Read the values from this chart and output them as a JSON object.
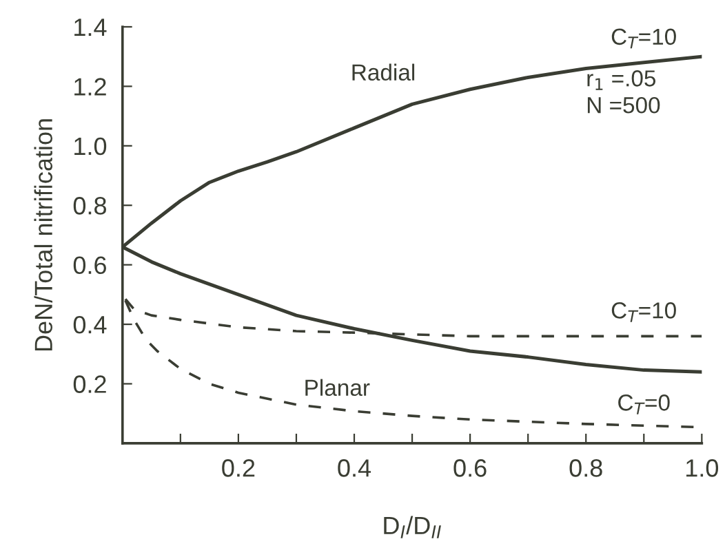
{
  "chart_data": {
    "type": "line",
    "xlabel": "D$_{I}$/D$_{II}$",
    "ylabel": "DeN/Total nitrification",
    "xlim": [
      0,
      1.0
    ],
    "ylim": [
      0,
      1.4
    ],
    "xticks": [
      {
        "value": 0,
        "label": null
      },
      {
        "value": 0.1,
        "label": null
      },
      0.2,
      {
        "value": 0.3,
        "label": null
      },
      0.4,
      {
        "value": 0.5,
        "label": null
      },
      0.6,
      {
        "value": 0.7,
        "label": null
      },
      0.8,
      {
        "value": 0.9,
        "label": null
      },
      {
        "value": 1.0,
        "label": "1.0"
      }
    ],
    "yticks": [
      {
        "value": 0,
        "label": null
      },
      0.2,
      0.4,
      0.6,
      0.8,
      {
        "value": 1.0,
        "label": "1.0"
      },
      1.2,
      1.4
    ],
    "grid": false,
    "legend": false,
    "marker": "none",
    "series": [
      {
        "color": "#3a3d33",
        "line_style": "solid",
        "x": [
          0,
          0.05,
          0.1,
          0.15,
          0.2,
          0.25,
          0.3,
          0.4,
          0.5,
          0.6,
          0.7,
          0.8,
          0.9,
          1.0
        ],
        "values": [
          0.66,
          0.74,
          0.815,
          0.877,
          0.915,
          0.946,
          0.98,
          1.06,
          1.14,
          1.19,
          1.23,
          1.26,
          1.28,
          1.3
        ]
      },
      {
        "color": "#3a3d33",
        "line_style": "solid",
        "x": [
          0,
          0.05,
          0.1,
          0.2,
          0.3,
          0.4,
          0.5,
          0.6,
          0.7,
          0.8,
          0.9,
          1.0
        ],
        "values": [
          0.66,
          0.61,
          0.57,
          0.5,
          0.43,
          0.385,
          0.346,
          0.31,
          0.29,
          0.265,
          0.246,
          0.24
        ]
      },
      {
        "color": "#3a3d33",
        "line_style": "dashed",
        "x": [
          0.005,
          0.02,
          0.05,
          0.1,
          0.2,
          0.3,
          0.4,
          0.6,
          0.8,
          1.0
        ],
        "values": [
          0.485,
          0.45,
          0.43,
          0.415,
          0.39,
          0.377,
          0.372,
          0.36,
          0.36,
          0.36
        ]
      },
      {
        "color": "#3a3d33",
        "line_style": "dashed",
        "x": [
          0.005,
          0.02,
          0.04,
          0.06,
          0.1,
          0.15,
          0.2,
          0.3,
          0.4,
          0.5,
          0.6,
          0.8,
          1.0
        ],
        "values": [
          0.48,
          0.415,
          0.35,
          0.31,
          0.25,
          0.2,
          0.17,
          0.13,
          0.108,
          0.092,
          0.08,
          0.065,
          0.054
        ]
      }
    ],
    "annotations": [
      "Radial",
      "Planar",
      "C$_{T}$=10",
      "r$_{1}$ =.05",
      "N =500",
      "C$_{T}$=10",
      "C$_{T}$=0"
    ]
  }
}
